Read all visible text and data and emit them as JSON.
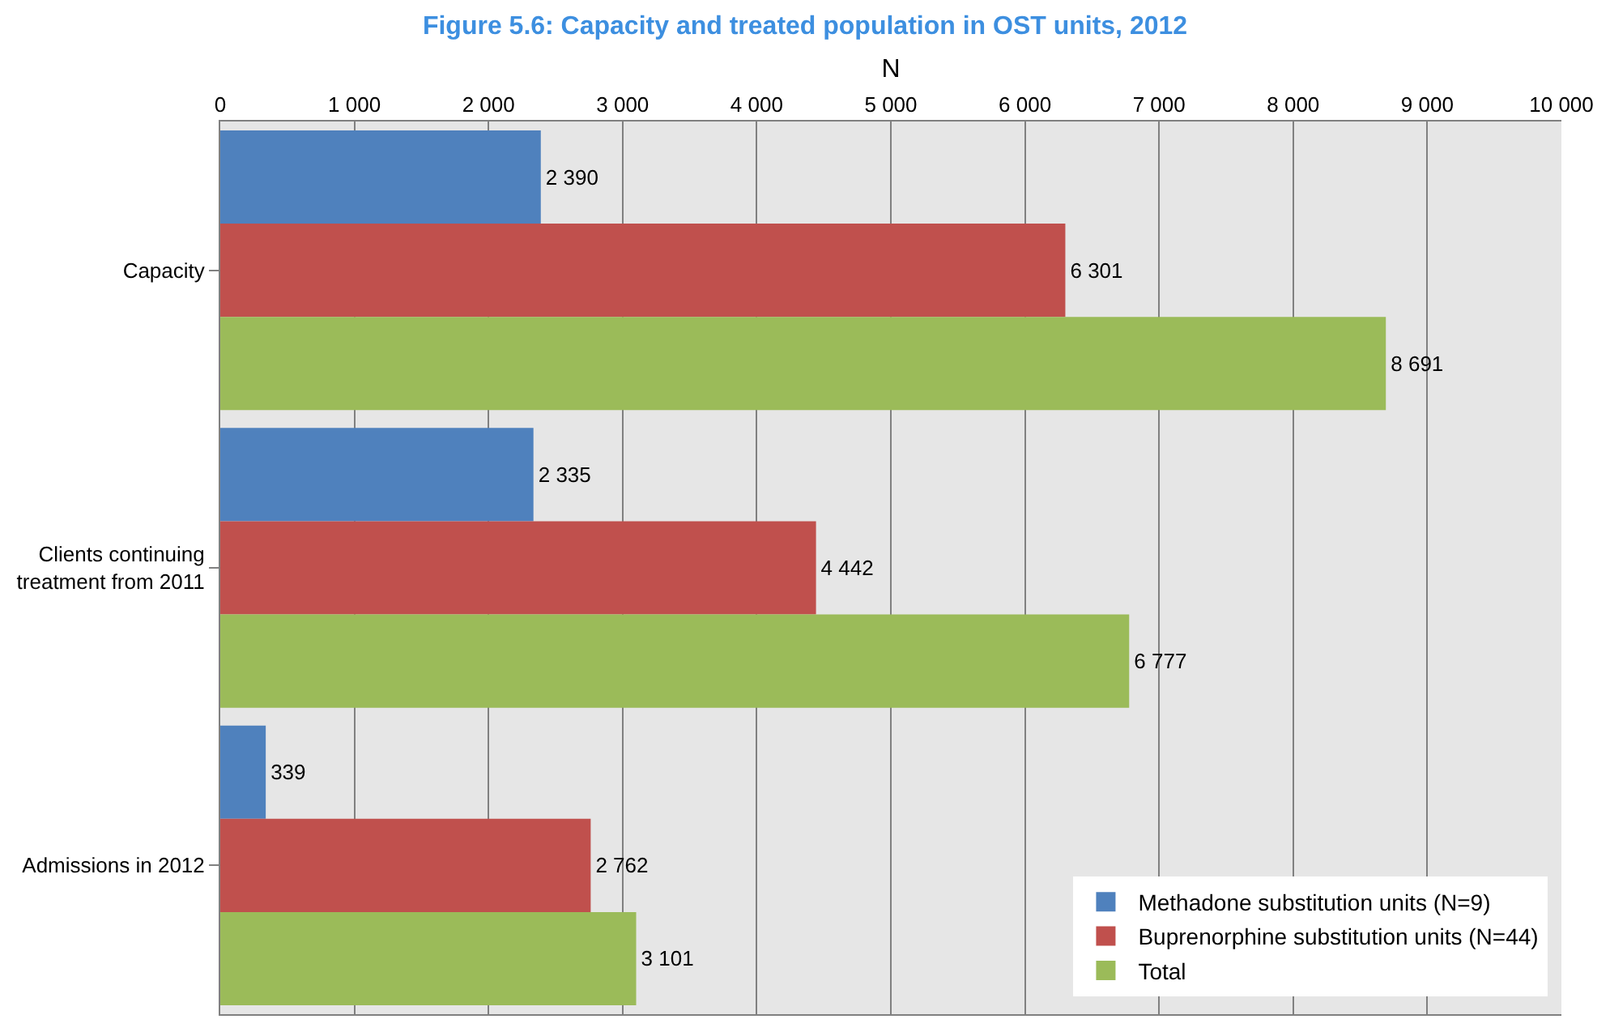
{
  "chart_data": {
    "type": "bar",
    "orientation": "horizontal",
    "title": "Figure 5.6: Capacity and treated population in OST units, 2012",
    "xlabel": "N",
    "categories": [
      "Capacity",
      "Clients continuing treatment from 2011",
      "Admissions in 2012"
    ],
    "series": [
      {
        "name": "Methadone substitution units (N=9)",
        "color": "#4f81bd",
        "values": [
          2390,
          2335,
          339
        ],
        "value_labels": [
          "2 390",
          "2 335",
          "339"
        ]
      },
      {
        "name": "Buprenorphine substitution units (N=44)",
        "color": "#c0504d",
        "values": [
          6301,
          4442,
          2762
        ],
        "value_labels": [
          "6 301",
          "4 442",
          "2 762"
        ]
      },
      {
        "name": "Total",
        "color": "#9bbb59",
        "values": [
          8691,
          6777,
          3101
        ],
        "value_labels": [
          "8 691",
          "6 777",
          "3 101"
        ]
      }
    ],
    "xlim": [
      0,
      10000
    ],
    "xticks": [
      0,
      {
        "value": 1000,
        "label": "1 000"
      },
      {
        "value": 2000,
        "label": "2 000"
      },
      {
        "value": 3000,
        "label": "3 000"
      },
      {
        "value": 4000,
        "label": "4 000"
      },
      {
        "value": 5000,
        "label": "5 000"
      },
      {
        "value": 6000,
        "label": "6 000"
      },
      {
        "value": 7000,
        "label": "7 000"
      },
      {
        "value": 8000,
        "label": "8 000"
      },
      {
        "value": 9000,
        "label": "9 000"
      },
      {
        "value": 10000,
        "label": "10 000"
      }
    ],
    "grid": "x",
    "legend": "bottom right"
  }
}
